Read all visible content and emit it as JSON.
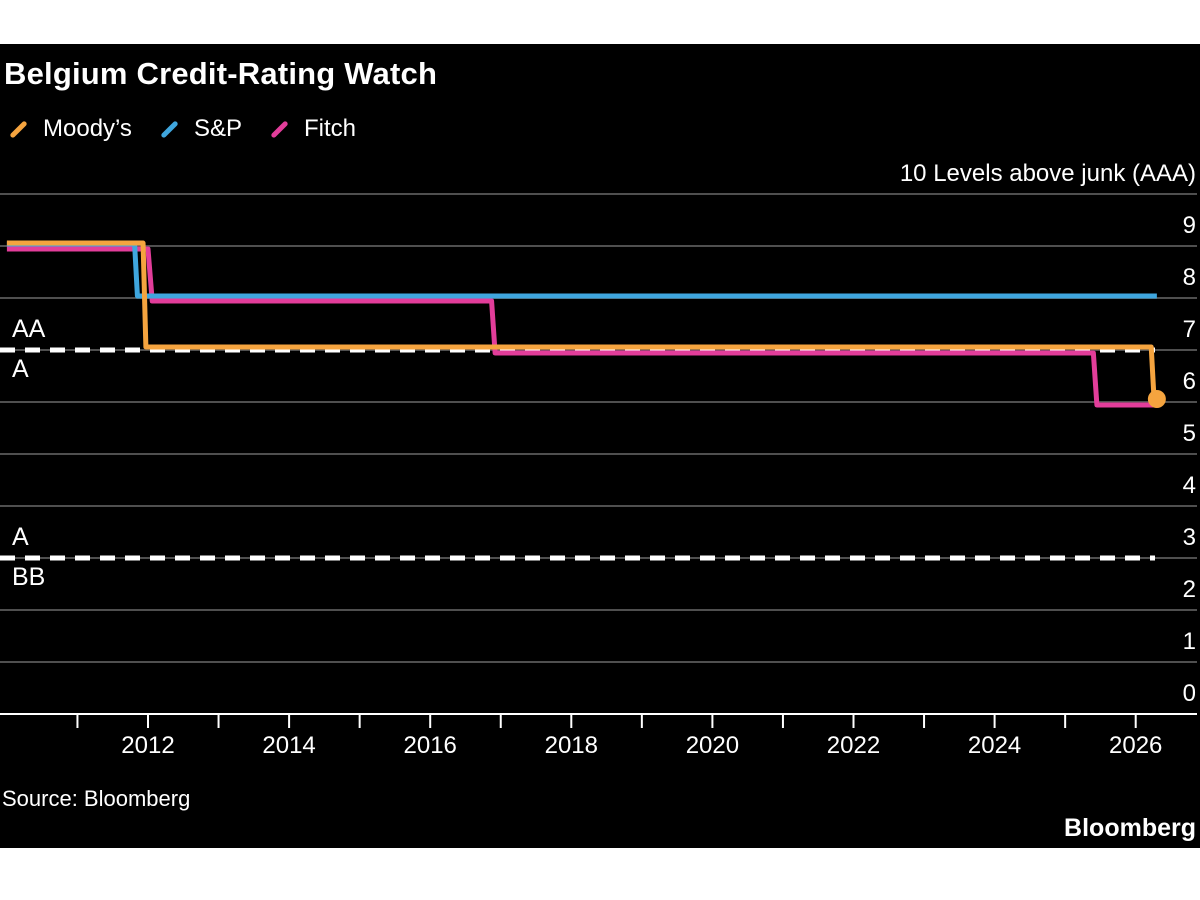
{
  "page": {
    "background": "#ffffff",
    "card_background": "#000000"
  },
  "header": {
    "title": "Belgium Credit-Rating Watch"
  },
  "legend": [
    {
      "label": "Moody’s",
      "color": "#F5A43F"
    },
    {
      "label": "S&P",
      "color": "#3FA6DE"
    },
    {
      "label": "Fitch",
      "color": "#E23D9A"
    }
  ],
  "footer": {
    "source": "Source: Bloomberg",
    "logo": "Bloomberg"
  },
  "chart_data": {
    "type": "line",
    "title": "Belgium Credit-Rating Watch",
    "unit_label": "10 Levels above junk (AAA)",
    "ylabel": "Levels above junk (AAA = 10)",
    "ylim": [
      0,
      10
    ],
    "xlim": [
      2010,
      2026.4
    ],
    "grid": "horizontal-gray-on-black",
    "legend_position": "top-left",
    "y_ticks": [
      9,
      8,
      7,
      6,
      5,
      4,
      3,
      2,
      1,
      0
    ],
    "x_ticks_years": [
      2011,
      2012,
      2013,
      2014,
      2015,
      2016,
      2017,
      2018,
      2019,
      2020,
      2021,
      2022,
      2023,
      2024,
      2025,
      2026
    ],
    "x_labeled_years": [
      2012,
      2014,
      2016,
      2018,
      2020,
      2022,
      2024,
      2026
    ],
    "colors": {
      "gridline": "#4f4f4f",
      "axis": "#ffffff",
      "threshold": "#ffffff"
    },
    "series": [
      {
        "name": "Moody's",
        "color": "#F5A43F",
        "end_dot": true,
        "points": [
          [
            2010.0,
            9
          ],
          [
            2011.93,
            9
          ],
          [
            2011.97,
            7
          ],
          [
            2026.22,
            7
          ],
          [
            2026.26,
            6
          ],
          [
            2026.3,
            6
          ]
        ]
      },
      {
        "name": "S&P",
        "color": "#3FA6DE",
        "end_dot": false,
        "points": [
          [
            2010.0,
            9
          ],
          [
            2011.81,
            9
          ],
          [
            2011.85,
            8
          ],
          [
            2026.3,
            8
          ]
        ]
      },
      {
        "name": "Fitch",
        "color": "#E23D9A",
        "end_dot": false,
        "points": [
          [
            2010.0,
            9
          ],
          [
            2012.0,
            9
          ],
          [
            2012.06,
            8
          ],
          [
            2016.87,
            8
          ],
          [
            2016.92,
            7
          ],
          [
            2025.4,
            7
          ],
          [
            2025.45,
            6
          ],
          [
            2026.3,
            6
          ]
        ]
      }
    ],
    "threshold_lines": [
      {
        "level": 7,
        "label_above": "AA",
        "label_below": "A"
      },
      {
        "level": 3,
        "label_above": "A",
        "label_below": "BB"
      }
    ]
  }
}
